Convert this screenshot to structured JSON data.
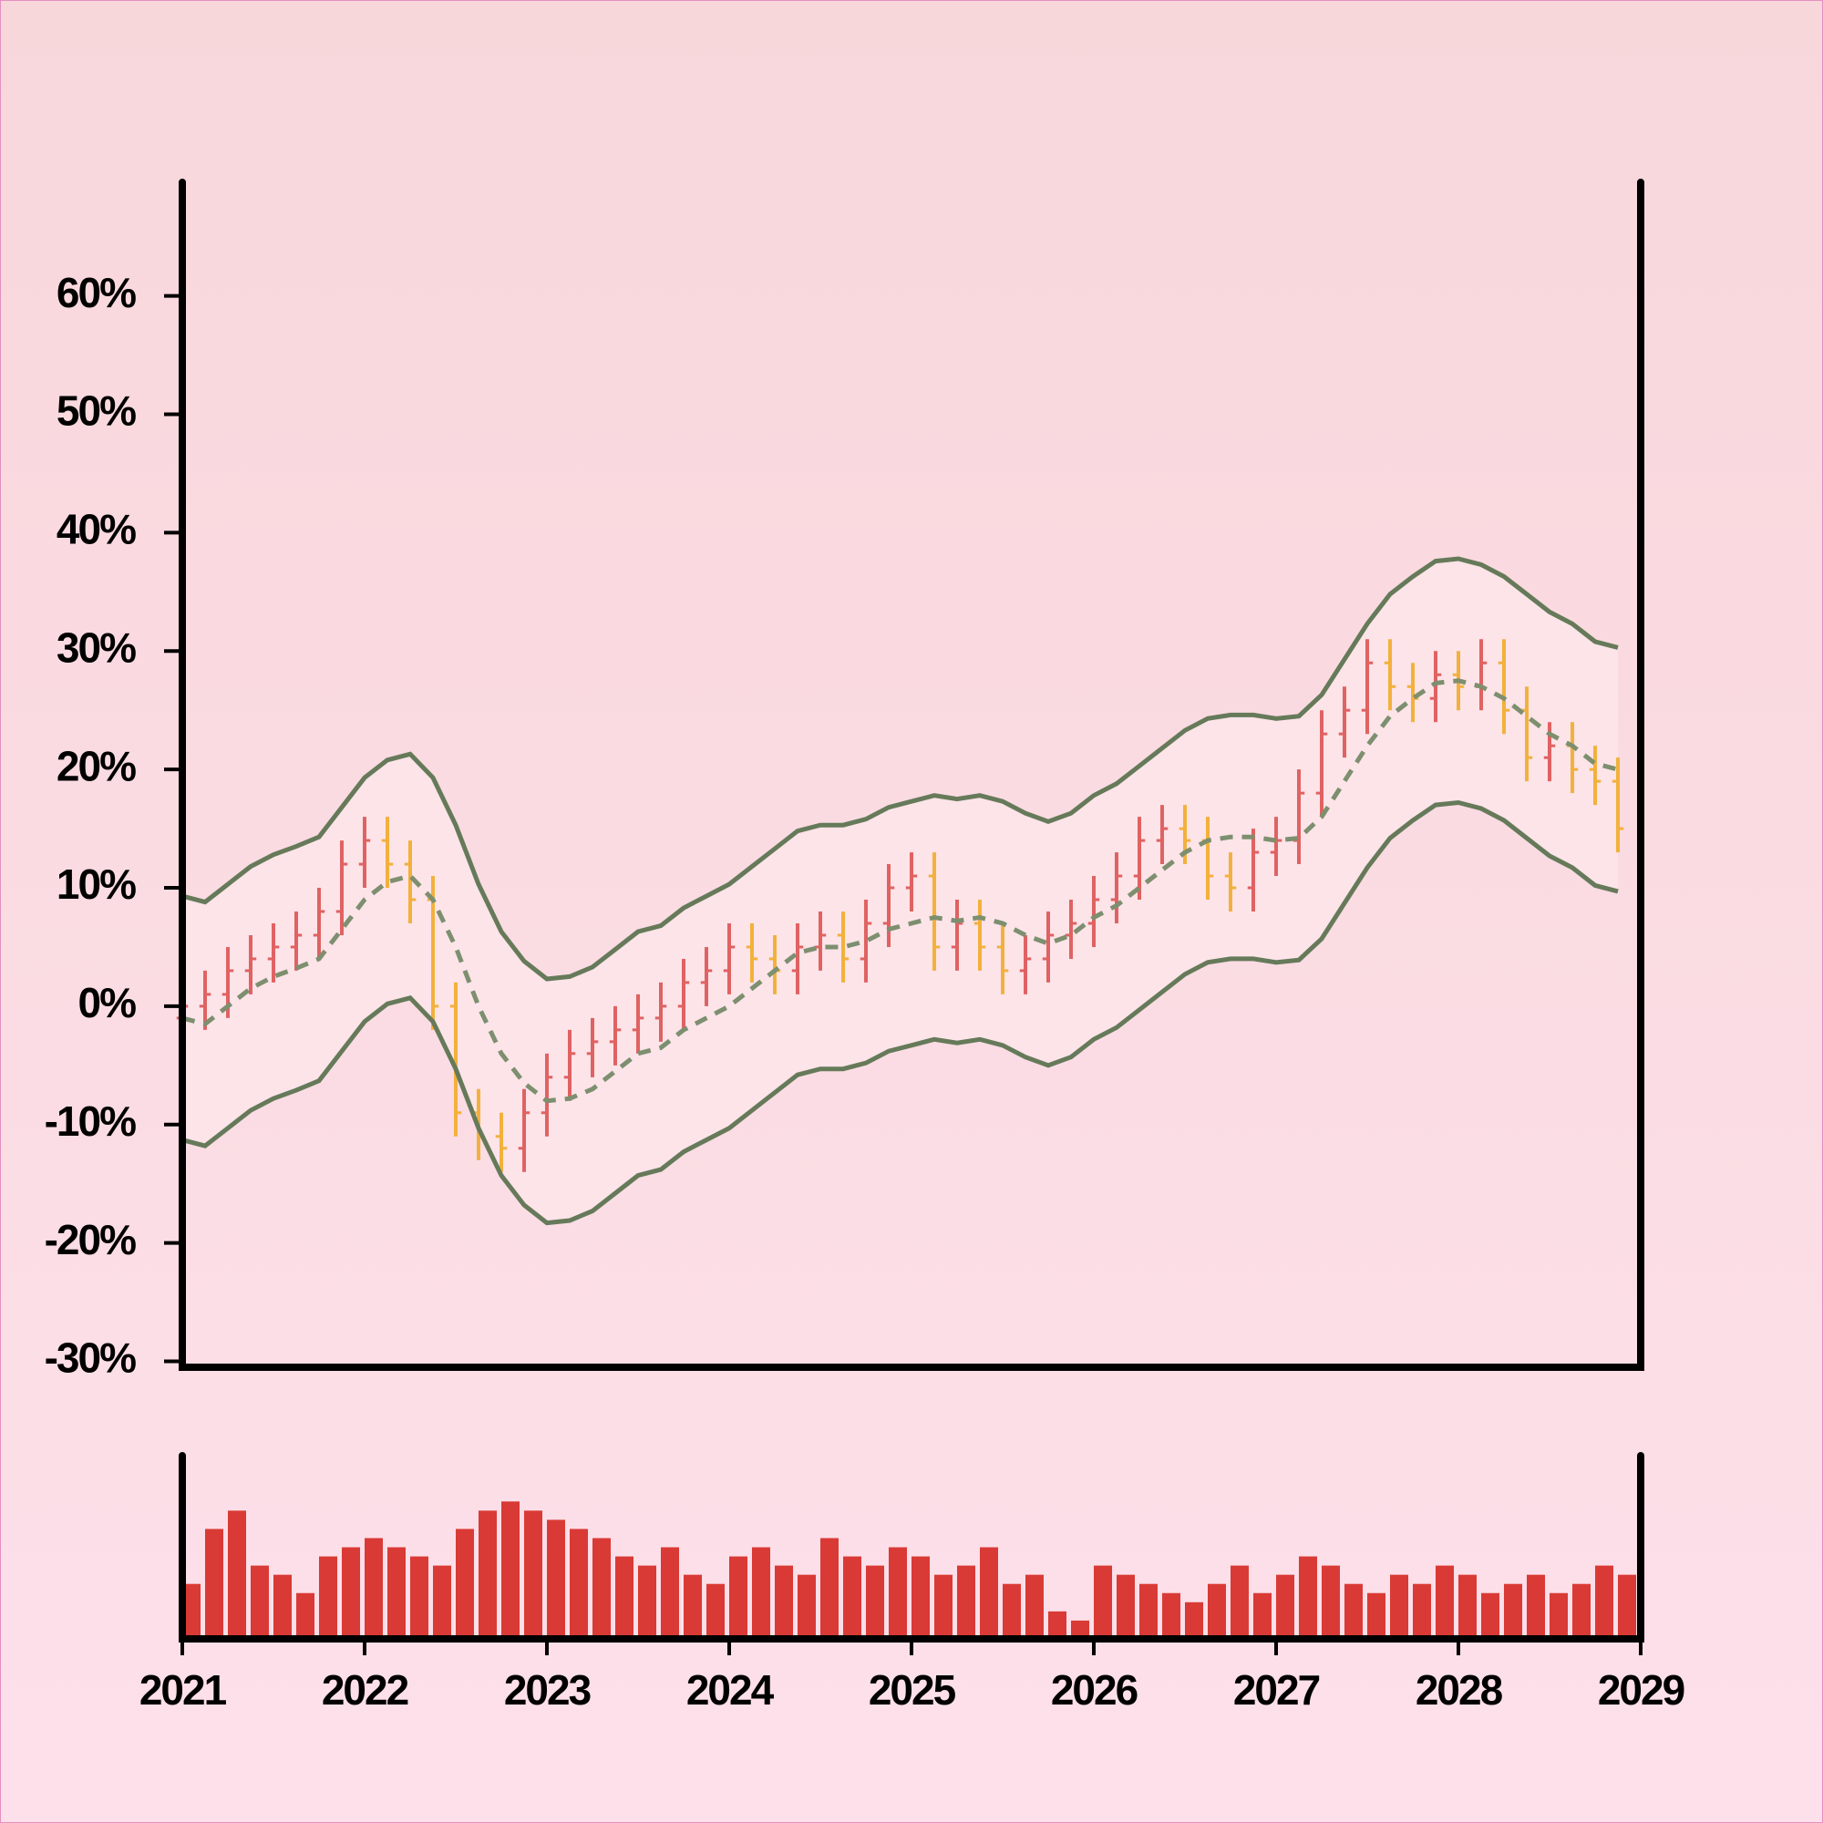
{
  "chart_data": {
    "type": "ohlc",
    "x": [
      2021,
      2021.125,
      2021.25,
      2021.375,
      2021.5,
      2021.625,
      2021.75,
      2021.875,
      2022,
      2022.125,
      2022.25,
      2022.375,
      2022.5,
      2022.625,
      2022.75,
      2022.875,
      2023,
      2023.125,
      2023.25,
      2023.375,
      2023.5,
      2023.625,
      2023.75,
      2023.875,
      2024,
      2024.125,
      2024.25,
      2024.375,
      2024.5,
      2024.625,
      2024.75,
      2024.875,
      2025,
      2025.125,
      2025.25,
      2025.375,
      2025.5,
      2025.625,
      2025.75,
      2025.875,
      2026,
      2026.125,
      2026.25,
      2026.375,
      2026.5,
      2026.625,
      2026.75,
      2026.875,
      2027,
      2027.125,
      2027.25,
      2027.375,
      2027.5,
      2027.625,
      2027.75,
      2027.875,
      2028,
      2028.125,
      2028.25,
      2028.375,
      2028.5,
      2028.625,
      2028.75,
      2028.875
    ],
    "open": [
      -1,
      0,
      1,
      3,
      4,
      5,
      6,
      8,
      12,
      14,
      12,
      9,
      0,
      -9,
      -11,
      -12,
      -9,
      -6,
      -4,
      -3,
      -2,
      -1,
      0,
      2,
      3,
      5,
      4,
      3,
      5,
      6,
      4,
      7,
      10,
      11,
      5,
      7,
      5,
      3,
      4,
      6,
      7,
      9,
      11,
      14,
      15,
      14,
      11,
      10,
      13,
      14,
      18,
      23,
      25,
      29,
      27,
      26,
      28,
      27,
      29,
      25,
      21,
      22,
      20,
      19
    ],
    "high": [
      2,
      3,
      5,
      6,
      7,
      8,
      10,
      14,
      16,
      16,
      14,
      11,
      2,
      -7,
      -9,
      -7,
      -4,
      -2,
      -1,
      0,
      1,
      2,
      4,
      5,
      7,
      7,
      6,
      7,
      8,
      8,
      9,
      12,
      13,
      13,
      9,
      9,
      7,
      6,
      8,
      9,
      11,
      13,
      16,
      17,
      17,
      16,
      13,
      15,
      16,
      20,
      25,
      27,
      31,
      31,
      29,
      30,
      30,
      31,
      31,
      27,
      24,
      24,
      22,
      21
    ],
    "low": [
      -3,
      -2,
      -1,
      1,
      2,
      3,
      4,
      6,
      10,
      10,
      7,
      -2,
      -11,
      -13,
      -14,
      -14,
      -11,
      -8,
      -6,
      -5,
      -4,
      -3,
      -2,
      0,
      1,
      2,
      1,
      1,
      3,
      2,
      2,
      5,
      8,
      3,
      3,
      3,
      1,
      1,
      2,
      4,
      5,
      7,
      9,
      12,
      12,
      9,
      8,
      8,
      11,
      12,
      16,
      21,
      23,
      25,
      24,
      24,
      25,
      25,
      23,
      19,
      19,
      18,
      17,
      13
    ],
    "close": [
      0,
      1,
      3,
      4,
      5,
      6,
      8,
      12,
      14,
      12,
      9,
      0,
      -9,
      -11,
      -12,
      -9,
      -6,
      -4,
      -3,
      -2,
      -1,
      0,
      2,
      3,
      5,
      4,
      3,
      5,
      6,
      4,
      7,
      10,
      11,
      5,
      7,
      5,
      3,
      4,
      6,
      7,
      9,
      11,
      14,
      15,
      14,
      11,
      10,
      13,
      14,
      18,
      23,
      25,
      29,
      27,
      26,
      28,
      27,
      29,
      25,
      21,
      22,
      20,
      19,
      15
    ],
    "upper": [
      9.3,
      8.8,
      10.3,
      11.8,
      12.8,
      13.5,
      14.3,
      16.8,
      19.3,
      20.8,
      21.3,
      19.3,
      15.3,
      10.3,
      6.3,
      3.8,
      2.3,
      2.5,
      3.3,
      4.8,
      6.3,
      6.8,
      8.3,
      9.3,
      10.3,
      11.8,
      13.3,
      14.8,
      15.3,
      15.3,
      15.8,
      16.8,
      17.3,
      17.8,
      17.5,
      17.8,
      17.3,
      16.3,
      15.6,
      16.3,
      17.8,
      18.8,
      20.3,
      21.8,
      23.3,
      24.3,
      24.6,
      24.6,
      24.3,
      24.5,
      26.3,
      29.3,
      32.3,
      34.8,
      36.3,
      37.6,
      37.8,
      37.3,
      36.3,
      34.8,
      33.3,
      32.3,
      30.8,
      30.3
    ],
    "middle": [
      -1,
      -1.5,
      0,
      1.5,
      2.5,
      3.2,
      4,
      6.5,
      9,
      10.5,
      11,
      9,
      5,
      0,
      -4,
      -6.5,
      -8,
      -7.8,
      -7,
      -5.5,
      -4,
      -3.5,
      -2,
      -1,
      0,
      1.5,
      3,
      4.5,
      5,
      5,
      5.5,
      6.5,
      7,
      7.5,
      7.2,
      7.5,
      7,
      6,
      5.3,
      6,
      7.5,
      8.5,
      10,
      11.5,
      13,
      14,
      14.3,
      14.3,
      14,
      14.2,
      16,
      19,
      22,
      24.5,
      26,
      27.3,
      27.5,
      27,
      26,
      24.5,
      23,
      22,
      20.5,
      20
    ],
    "lower": [
      -11.3,
      -11.8,
      -10.3,
      -8.8,
      -7.8,
      -7.1,
      -6.3,
      -3.8,
      -1.3,
      0.2,
      0.7,
      -1.3,
      -5.3,
      -10.3,
      -14.3,
      -16.8,
      -18.3,
      -18.1,
      -17.3,
      -15.8,
      -14.3,
      -13.8,
      -12.3,
      -11.3,
      -10.3,
      -8.8,
      -7.3,
      -5.8,
      -5.3,
      -5.3,
      -4.8,
      -3.8,
      -3.3,
      -2.8,
      -3.1,
      -2.8,
      -3.3,
      -4.3,
      -5,
      -4.3,
      -2.8,
      -1.8,
      -0.3,
      1.2,
      2.7,
      3.7,
      4,
      4,
      3.7,
      3.9,
      5.7,
      8.7,
      11.7,
      14.2,
      15.7,
      17,
      17.2,
      16.7,
      15.7,
      14.2,
      12.7,
      11.7,
      10.2,
      9.7
    ],
    "volume": [
      30,
      60,
      70,
      40,
      35,
      25,
      45,
      50,
      55,
      50,
      45,
      40,
      60,
      70,
      75,
      70,
      65,
      60,
      55,
      45,
      40,
      50,
      35,
      30,
      45,
      50,
      40,
      35,
      55,
      45,
      40,
      50,
      45,
      35,
      40,
      50,
      30,
      35,
      15,
      10,
      40,
      35,
      30,
      25,
      20,
      30,
      40,
      25,
      35,
      45,
      40,
      30,
      25,
      35,
      30,
      40,
      35,
      25,
      30,
      35,
      25,
      30,
      40,
      35
    ],
    "up_color": "#e06262",
    "down_color": "#f2b13c",
    "band_color": "#667a5a",
    "volume_color": "#d93a35",
    "xlim": [
      2021,
      2029
    ],
    "xticks": [
      2021,
      2022,
      2023,
      2024,
      2025,
      2026,
      2027,
      2028,
      2029
    ],
    "ylim": [
      -30.5,
      69.6
    ],
    "yticks": [
      {
        "value": -30,
        "label": "-30%"
      },
      {
        "value": -20,
        "label": "-20%"
      },
      {
        "value": -10,
        "label": "-10%"
      },
      {
        "value": 0,
        "label": "0%"
      },
      {
        "value": 10,
        "label": "10%"
      },
      {
        "value": 20,
        "label": "20%"
      },
      {
        "value": 30,
        "label": "30%"
      },
      {
        "value": 40,
        "label": "40%"
      },
      {
        "value": 50,
        "label": "50%"
      },
      {
        "value": 60,
        "label": "60%"
      }
    ],
    "volume_ylim": [
      0,
      100
    ]
  }
}
